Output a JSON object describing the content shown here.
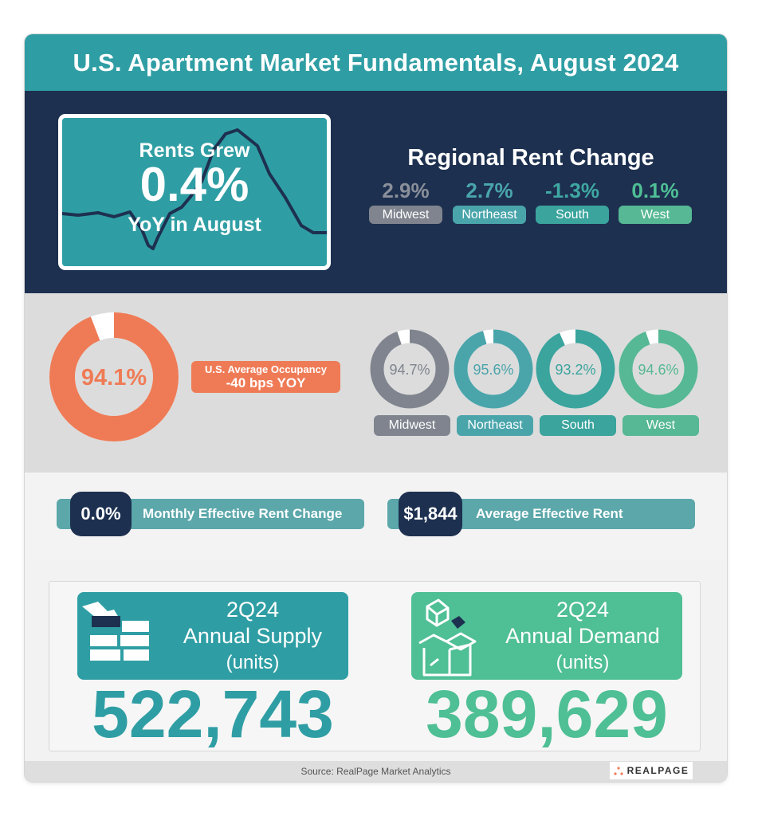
{
  "header": {
    "title": "U.S. Apartment Market Fundamentals, August 2024"
  },
  "hero": {
    "line1": "Rents Grew",
    "value": "0.4%",
    "line2": "YoY in August"
  },
  "regional_rent_change": {
    "title": "Regional Rent Change",
    "regions": [
      {
        "value": "2.9%",
        "label": "Midwest",
        "value_color": "#8a8f99",
        "pill_color": "#7f848e"
      },
      {
        "value": "2.7%",
        "label": "Northeast",
        "value_color": "#4aa5ab",
        "pill_color": "#4aa5ab"
      },
      {
        "value": "-1.3%",
        "label": "South",
        "value_color": "#3fa8a2",
        "pill_color": "#3aa49d"
      },
      {
        "value": "0.1%",
        "label": "West",
        "value_color": "#4fbf95",
        "pill_color": "#56b894"
      }
    ]
  },
  "occupancy": {
    "value": "94.1%",
    "label_line1": "U.S. Average Occupancy",
    "label_line2": "-40 bps YOY",
    "color": "#ef7b56",
    "regions": [
      {
        "value": "94.7%",
        "label": "Midwest",
        "color": "#7f848e"
      },
      {
        "value": "95.6%",
        "label": "Northeast",
        "color": "#4aa5ab"
      },
      {
        "value": "93.2%",
        "label": "South",
        "color": "#3aa49d"
      },
      {
        "value": "94.6%",
        "label": "West",
        "color": "#56b894"
      }
    ]
  },
  "rent_metrics": {
    "monthly_change_value": "0.0%",
    "monthly_change_label": "Monthly Effective Rent Change",
    "avg_rent_value": "$1,844",
    "avg_rent_label": "Average Effective Rent"
  },
  "supply": {
    "period": "2Q24",
    "label": "Annual Supply",
    "units": "(units)",
    "value": "522,743",
    "color": "#2f9ea4"
  },
  "demand": {
    "period": "2Q24",
    "label": "Annual Demand",
    "units": "(units)",
    "value": "389,629",
    "color": "#4fbf95"
  },
  "footer": {
    "source": "Source: RealPage Market Analytics",
    "logo": "REALPAGE"
  },
  "chart_data": [
    {
      "type": "pie",
      "title": "U.S. Average Occupancy",
      "values": [
        94.1
      ],
      "unit": "%"
    },
    {
      "type": "pie",
      "categories": [
        "Midwest",
        "Northeast",
        "South",
        "West"
      ],
      "values": [
        94.7,
        95.6,
        93.2,
        94.6
      ],
      "unit": "%"
    },
    {
      "type": "bar",
      "title": "Regional Rent Change",
      "categories": [
        "Midwest",
        "Northeast",
        "South",
        "West"
      ],
      "values": [
        2.9,
        2.7,
        -1.3,
        0.1
      ],
      "unit": "%"
    }
  ]
}
